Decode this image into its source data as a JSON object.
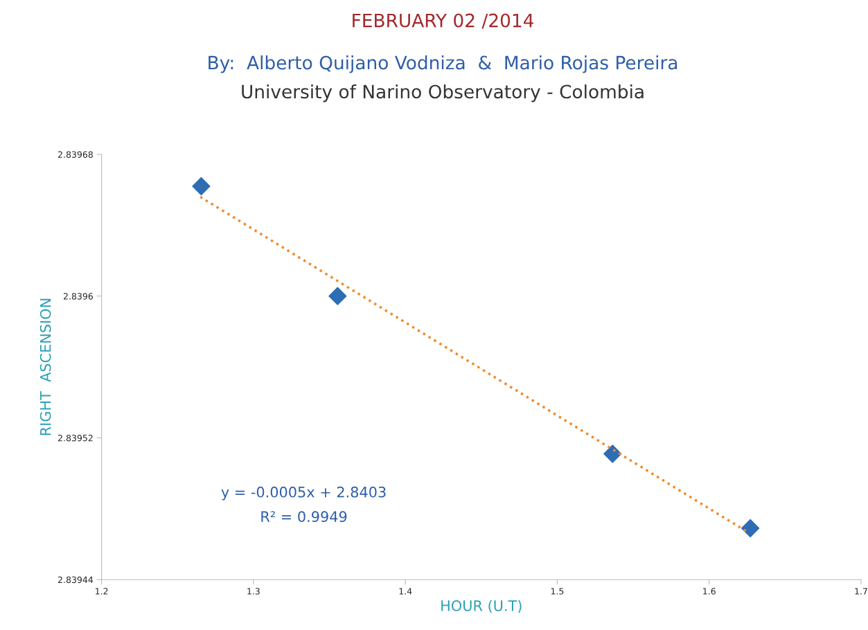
{
  "chart_data": {
    "type": "scatter",
    "title": "FEBRUARY 02 /2014",
    "subtitle": "By:  Alberto Quijano Vodniza  &  Mario Rojas Pereira",
    "xlabel": "HOUR (U.T)",
    "ylabel": "RIGHT  ASCENSION",
    "annotations": [
      "University of Narino Observatory - Colombia",
      "y = -0.0005x + 2.8403",
      "R² = 0.9949"
    ],
    "series": [
      {
        "color": "#2e6db4",
        "marker": "diamond",
        "x": [
          1.2656,
          1.3554,
          1.5364,
          1.6271
        ],
        "values": [
          2.839662,
          2.8396,
          2.839511,
          2.839469
        ]
      },
      {
        "type": "line",
        "color": "#f08a2c",
        "line_style": "dotted",
        "marker": "none",
        "x": [
          1.265,
          1.625
        ],
        "values": [
          2.839656,
          2.839467
        ]
      }
    ],
    "xlim": [
      1.2,
      1.7
    ],
    "xticks": [
      1.2,
      1.3,
      1.4,
      1.5,
      1.6,
      1.7
    ],
    "ylim": [
      2.83944,
      2.83968
    ],
    "yticks": [
      2.83944,
      2.83952,
      2.8396,
      2.83968
    ],
    "grid": false,
    "legend": false
  }
}
